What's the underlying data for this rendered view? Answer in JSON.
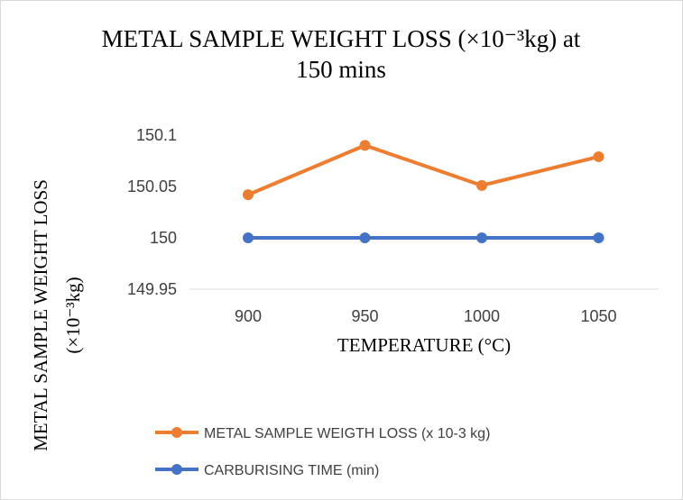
{
  "chart_data": {
    "type": "line",
    "title_line1": "METAL SAMPLE WEIGHT LOSS (×10⁻³kg) at",
    "title_line2": "150 mins",
    "xlabel": "TEMPERATURE (°C)",
    "ylabel_line1": "METAL SAMPLE WEIGHT LOSS",
    "ylabel_line2": "(×10⁻³kg)",
    "categories": [
      "900",
      "950",
      "1000",
      "1050"
    ],
    "ylim": [
      149.95,
      150.1
    ],
    "yticks": [
      "149.95",
      "150",
      "150.05",
      "150.1"
    ],
    "ytick_values": [
      149.95,
      150,
      150.05,
      150.1
    ],
    "grid": false,
    "legend_position": "bottom",
    "series": [
      {
        "name": "METAL SAMPLE WEIGTH LOSS (x 10-3 kg)",
        "color": "#ED7D31",
        "values": [
          150.042,
          150.09,
          150.051,
          150.079
        ]
      },
      {
        "name": "CARBURISING TIME (min)",
        "color": "#4472C4",
        "values": [
          150,
          150,
          150,
          150
        ]
      }
    ]
  }
}
